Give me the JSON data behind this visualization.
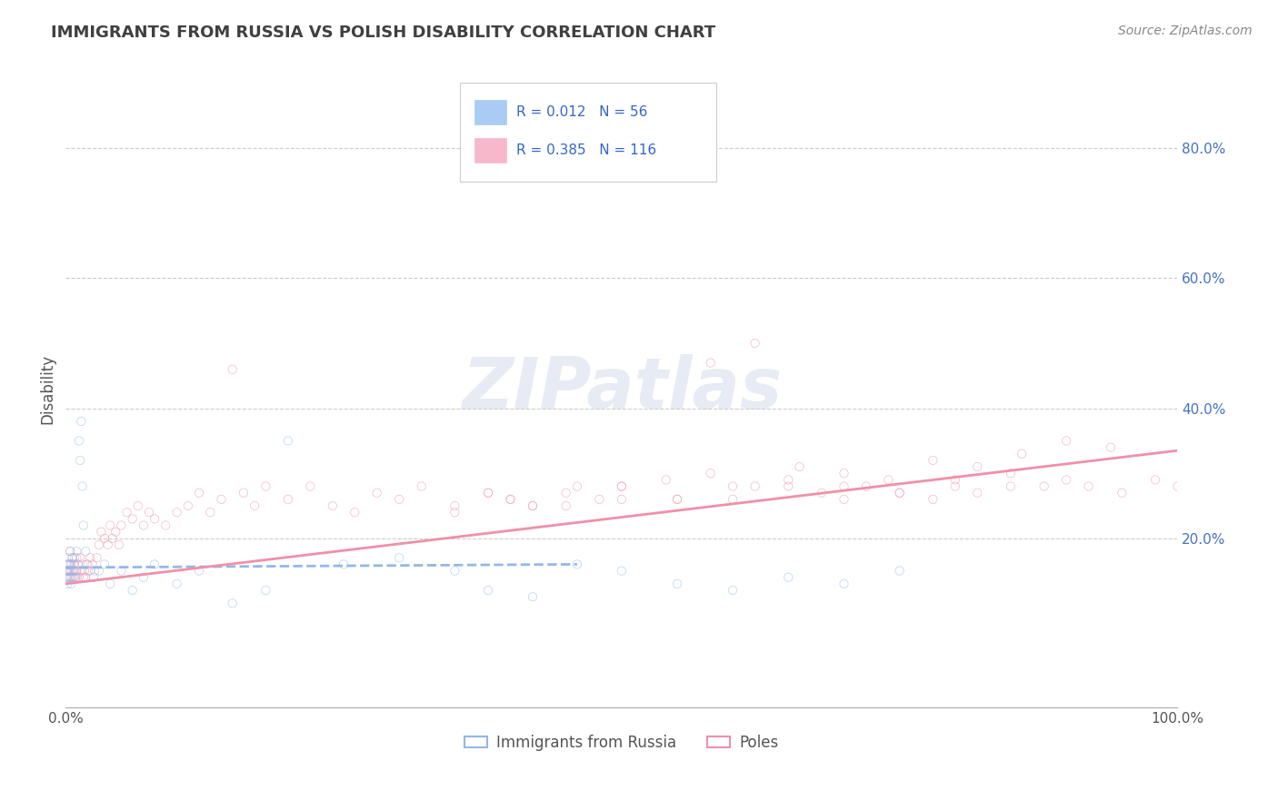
{
  "title": "IMMIGRANTS FROM RUSSIA VS POLISH DISABILITY CORRELATION CHART",
  "source_text": "Source: ZipAtlas.com",
  "ylabel": "Disability",
  "watermark": "ZIPatlas",
  "xlim": [
    0.0,
    1.0
  ],
  "ylim": [
    -0.06,
    0.92
  ],
  "xtick_labels": [
    "0.0%",
    "100.0%"
  ],
  "ytick_positions": [
    0.2,
    0.4,
    0.6,
    0.8
  ],
  "ytick_labels": [
    "20.0%",
    "40.0%",
    "60.0%",
    "80.0%"
  ],
  "legend_r1": "R = 0.012   N = 56",
  "legend_r2": "R = 0.385   N = 116",
  "legend_bottom_labels": [
    "Immigrants from Russia",
    "Poles"
  ],
  "russia_color": "#92b8e8",
  "poles_color": "#f090a8",
  "russia_patch_color": "#aaccf4",
  "poles_patch_color": "#f8b8cc",
  "background_color": "#ffffff",
  "grid_color": "#cccccc",
  "title_color": "#404040",
  "axis_label_color": "#4472c4",
  "russia_trend_x": [
    0.0,
    0.46
  ],
  "russia_trend_y": [
    0.155,
    0.16
  ],
  "poles_trend_x": [
    0.0,
    1.0
  ],
  "poles_trend_y": [
    0.13,
    0.335
  ],
  "russia_scatter_x": [
    0.001,
    0.001,
    0.001,
    0.002,
    0.002,
    0.002,
    0.003,
    0.003,
    0.004,
    0.004,
    0.005,
    0.005,
    0.005,
    0.006,
    0.006,
    0.007,
    0.007,
    0.008,
    0.008,
    0.009,
    0.01,
    0.01,
    0.011,
    0.012,
    0.013,
    0.014,
    0.015,
    0.016,
    0.018,
    0.02,
    0.022,
    0.025,
    0.03,
    0.035,
    0.04,
    0.05,
    0.06,
    0.07,
    0.08,
    0.1,
    0.12,
    0.15,
    0.18,
    0.2,
    0.25,
    0.3,
    0.35,
    0.38,
    0.42,
    0.46,
    0.5,
    0.55,
    0.6,
    0.65,
    0.7,
    0.75
  ],
  "russia_scatter_y": [
    0.15,
    0.16,
    0.14,
    0.17,
    0.15,
    0.13,
    0.16,
    0.15,
    0.18,
    0.14,
    0.16,
    0.15,
    0.13,
    0.17,
    0.14,
    0.16,
    0.15,
    0.14,
    0.17,
    0.15,
    0.18,
    0.14,
    0.16,
    0.35,
    0.32,
    0.38,
    0.28,
    0.22,
    0.18,
    0.16,
    0.15,
    0.14,
    0.15,
    0.16,
    0.13,
    0.15,
    0.12,
    0.14,
    0.16,
    0.13,
    0.15,
    0.1,
    0.12,
    0.35,
    0.16,
    0.17,
    0.15,
    0.12,
    0.11,
    0.16,
    0.15,
    0.13,
    0.12,
    0.14,
    0.13,
    0.15
  ],
  "poles_scatter_x": [
    0.001,
    0.001,
    0.002,
    0.002,
    0.003,
    0.003,
    0.004,
    0.004,
    0.005,
    0.005,
    0.006,
    0.006,
    0.007,
    0.008,
    0.008,
    0.009,
    0.01,
    0.01,
    0.011,
    0.012,
    0.013,
    0.014,
    0.015,
    0.016,
    0.017,
    0.018,
    0.019,
    0.02,
    0.022,
    0.024,
    0.026,
    0.028,
    0.03,
    0.032,
    0.035,
    0.038,
    0.04,
    0.042,
    0.045,
    0.048,
    0.05,
    0.055,
    0.06,
    0.065,
    0.07,
    0.075,
    0.08,
    0.09,
    0.1,
    0.11,
    0.12,
    0.13,
    0.14,
    0.15,
    0.16,
    0.17,
    0.18,
    0.2,
    0.22,
    0.24,
    0.26,
    0.28,
    0.3,
    0.32,
    0.35,
    0.38,
    0.4,
    0.42,
    0.45,
    0.48,
    0.5,
    0.55,
    0.58,
    0.6,
    0.62,
    0.65,
    0.68,
    0.7,
    0.72,
    0.75,
    0.78,
    0.8,
    0.82,
    0.85,
    0.88,
    0.9,
    0.92,
    0.95,
    0.98,
    1.0,
    0.35,
    0.4,
    0.45,
    0.5,
    0.55,
    0.6,
    0.65,
    0.7,
    0.75,
    0.8,
    0.85,
    0.38,
    0.42,
    0.46,
    0.5,
    0.54,
    0.58,
    0.62,
    0.66,
    0.7,
    0.74,
    0.78,
    0.82,
    0.86,
    0.9,
    0.94
  ],
  "poles_scatter_y": [
    0.15,
    0.14,
    0.16,
    0.15,
    0.14,
    0.16,
    0.18,
    0.15,
    0.16,
    0.14,
    0.15,
    0.17,
    0.14,
    0.16,
    0.15,
    0.14,
    0.17,
    0.15,
    0.16,
    0.14,
    0.17,
    0.15,
    0.16,
    0.14,
    0.15,
    0.14,
    0.16,
    0.15,
    0.17,
    0.16,
    0.15,
    0.17,
    0.19,
    0.21,
    0.2,
    0.19,
    0.22,
    0.2,
    0.21,
    0.19,
    0.22,
    0.24,
    0.23,
    0.25,
    0.22,
    0.24,
    0.23,
    0.22,
    0.24,
    0.25,
    0.27,
    0.24,
    0.26,
    0.46,
    0.27,
    0.25,
    0.28,
    0.26,
    0.28,
    0.25,
    0.24,
    0.27,
    0.26,
    0.28,
    0.25,
    0.27,
    0.26,
    0.25,
    0.27,
    0.26,
    0.28,
    0.26,
    0.47,
    0.26,
    0.5,
    0.28,
    0.27,
    0.26,
    0.28,
    0.27,
    0.26,
    0.28,
    0.27,
    0.3,
    0.28,
    0.29,
    0.28,
    0.27,
    0.29,
    0.28,
    0.24,
    0.26,
    0.25,
    0.28,
    0.26,
    0.28,
    0.29,
    0.28,
    0.27,
    0.29,
    0.28,
    0.27,
    0.25,
    0.28,
    0.26,
    0.29,
    0.3,
    0.28,
    0.31,
    0.3,
    0.29,
    0.32,
    0.31,
    0.33,
    0.35,
    0.34
  ]
}
